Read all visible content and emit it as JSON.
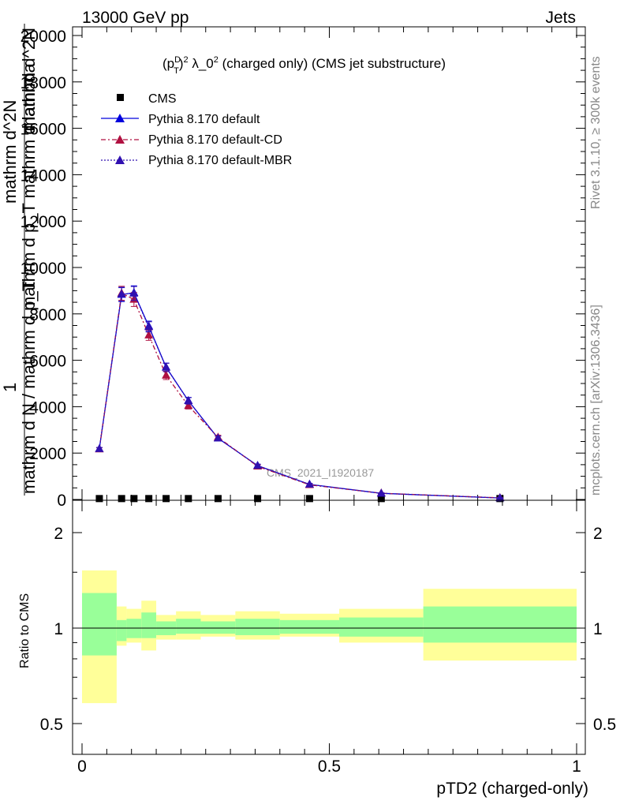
{
  "header": {
    "left": "13000 GeV pp",
    "right": "Jets"
  },
  "side_labels": {
    "rivet": "Rivet 3.1.10, ≥ 300k events",
    "mcplots": "mcplots.cern.ch [arXiv:1306.3436]"
  },
  "chart_data": [
    {
      "type": "line",
      "title_parts": {
        "p": "(p",
        "sup": "D",
        "sub": "T",
        "rest": ")",
        "sup2": "2",
        "body": " λ_0",
        "sup3": "2",
        "tail": " (charged only) (CMS jet substructure)"
      },
      "watermark": "CMS_2021_I1920187",
      "ylabel_numerator": "1",
      "ylabel_lines": [
        "mathrm d^2N",
        "mathrm d p_T mathrm d lambda",
        "mathrm d N / mathrm d p_T"
      ],
      "ylabel_overlap": "mathrm d^2N",
      "xlim": [
        0,
        1
      ],
      "ylim": [
        0,
        20000
      ],
      "y_ticks": [
        0,
        2000,
        4000,
        6000,
        8000,
        10000,
        12000,
        14000,
        16000,
        18000,
        20000
      ],
      "y_tick_labels": [
        "0",
        "2000",
        "4000",
        "6000",
        "8000",
        "10000",
        "12000",
        "14000",
        "16000",
        "18000",
        "20000"
      ],
      "legend": {
        "position": "top-left"
      },
      "series": [
        {
          "name": "CMS",
          "color": "#000000",
          "marker": "square",
          "x": [
            0.035,
            0.08,
            0.105,
            0.135,
            0.17,
            0.215,
            0.275,
            0.355,
            0.46,
            0.605,
            0.845
          ],
          "y": [
            5,
            5,
            5,
            5,
            5,
            5,
            5,
            5,
            5,
            5,
            5
          ]
        },
        {
          "name": "Pythia 8.170 default",
          "color": "#0000dd",
          "marker": "triangle",
          "dash": "",
          "x": [
            0.035,
            0.08,
            0.105,
            0.135,
            0.17,
            0.215,
            0.275,
            0.355,
            0.46,
            0.605,
            0.845
          ],
          "y": [
            2180,
            8830,
            8910,
            7470,
            5700,
            4260,
            2640,
            1460,
            650,
            265,
            65
          ],
          "err": [
            60,
            300,
            300,
            220,
            180,
            140,
            90,
            60,
            40,
            20,
            10
          ]
        },
        {
          "name": "Pythia 8.170 default-CD",
          "color": "#b01040",
          "marker": "triangle",
          "dash": "6,3,2,3",
          "x": [
            0.035,
            0.08,
            0.105,
            0.135,
            0.17,
            0.215,
            0.275,
            0.355,
            0.46,
            0.605,
            0.845
          ],
          "y": [
            2170,
            8890,
            8620,
            7080,
            5350,
            4040,
            2680,
            1430,
            630,
            270,
            70
          ],
          "err": [
            60,
            300,
            300,
            220,
            180,
            140,
            90,
            60,
            40,
            20,
            10
          ]
        },
        {
          "name": "Pythia 8.170 default-MBR",
          "color": "#3010b0",
          "marker": "triangle",
          "dash": "2,2",
          "x": [
            0.035,
            0.08,
            0.105,
            0.135,
            0.17,
            0.215,
            0.275,
            0.355,
            0.46,
            0.605,
            0.845
          ],
          "y": [
            2180,
            8850,
            8880,
            7440,
            5690,
            4250,
            2640,
            1460,
            650,
            265,
            65
          ],
          "err": [
            60,
            300,
            300,
            220,
            180,
            140,
            90,
            60,
            40,
            20,
            10
          ]
        }
      ]
    },
    {
      "type": "area",
      "ylabel": "Ratio to CMS",
      "xlabel": "pTD2 (charged-only)",
      "xlim": [
        0,
        1
      ],
      "ylim": [
        0.35,
        2.3
      ],
      "x_ticks": [
        0,
        0.5,
        1
      ],
      "x_tick_labels": [
        "0",
        "0.5",
        "1"
      ],
      "y_ticks": [
        0.5,
        1,
        2
      ],
      "y_tick_labels": [
        "0.5",
        "1",
        "2"
      ],
      "bin_edges": [
        0,
        0.07,
        0.09,
        0.12,
        0.15,
        0.19,
        0.24,
        0.31,
        0.4,
        0.52,
        0.69,
        1.0
      ],
      "band_outer": {
        "color": "#ffff99",
        "low": [
          0.58,
          0.88,
          0.9,
          0.85,
          0.92,
          0.92,
          0.94,
          0.92,
          0.94,
          0.9,
          0.79
        ],
        "high": [
          1.52,
          1.17,
          1.15,
          1.22,
          1.1,
          1.13,
          1.1,
          1.13,
          1.11,
          1.15,
          1.33
        ]
      },
      "band_inner": {
        "color": "#99ff99",
        "low": [
          0.82,
          0.91,
          0.93,
          0.93,
          0.95,
          0.96,
          0.96,
          0.95,
          0.96,
          0.94,
          0.9
        ],
        "high": [
          1.29,
          1.06,
          1.07,
          1.12,
          1.05,
          1.07,
          1.05,
          1.07,
          1.06,
          1.08,
          1.17
        ]
      },
      "reference": 1
    }
  ]
}
